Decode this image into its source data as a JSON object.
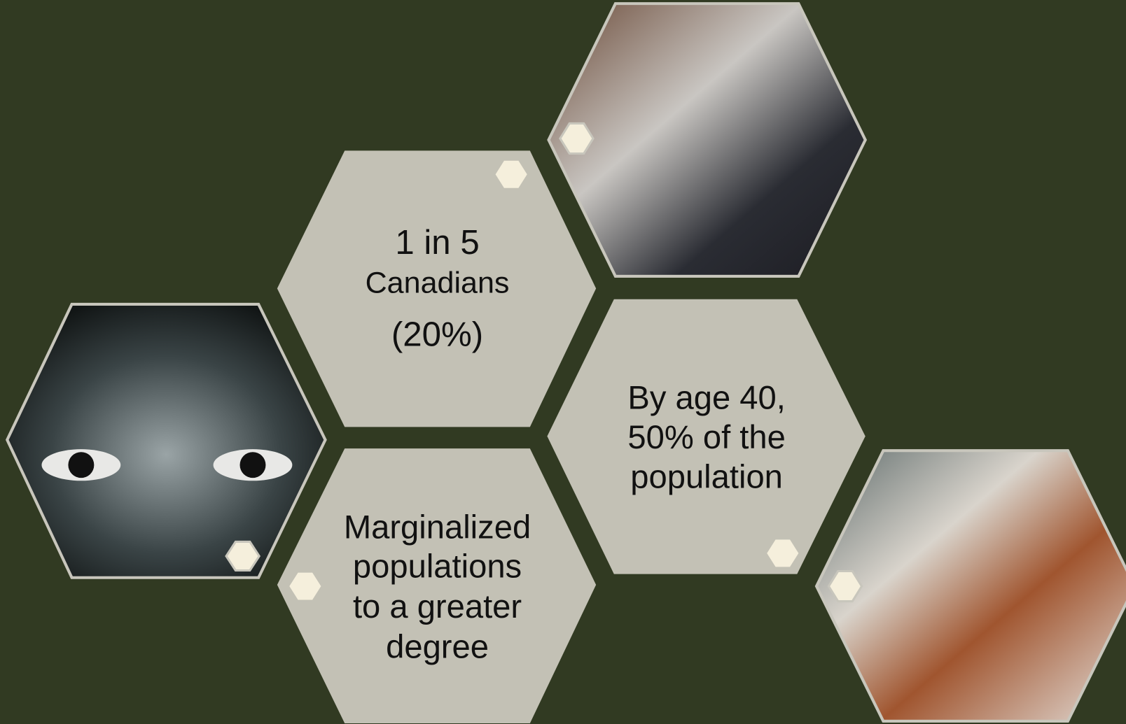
{
  "hexagons": [
    {
      "lines": [
        "1 in 5",
        "Canadians",
        "(20%)"
      ]
    },
    {
      "lines": [
        "By age 40,",
        "50% of the",
        "population"
      ]
    },
    {
      "lines": [
        "Marginalized",
        "populations",
        "to a greater",
        "degree"
      ]
    }
  ]
}
